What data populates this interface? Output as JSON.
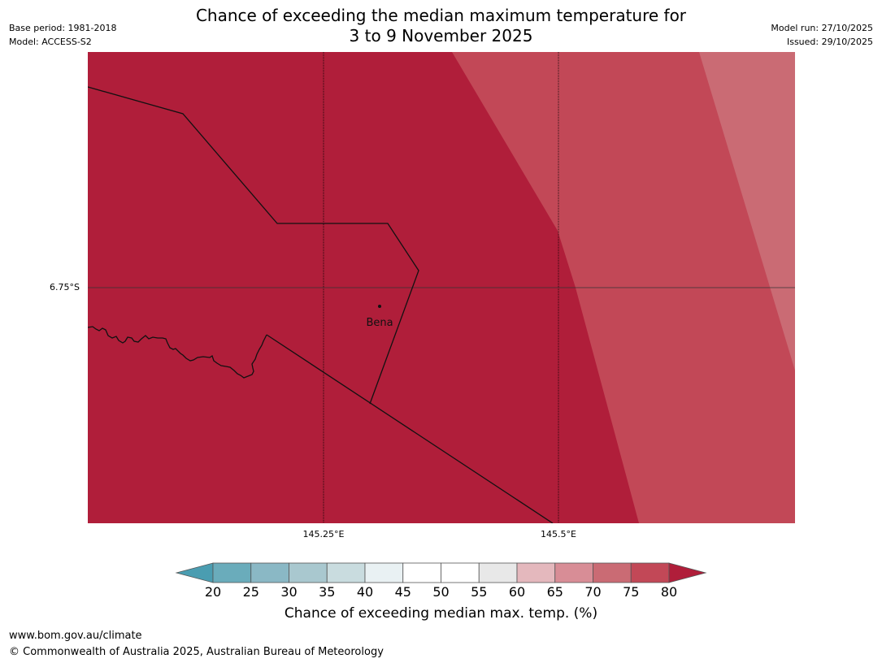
{
  "header": {
    "title_line1": "Chance of exceeding the median maximum temperature for",
    "title_line2": "3 to 9 November 2025",
    "base_period": "Base period: 1981-2018",
    "model": "Model: ACCESS-S2",
    "model_run": "Model run: 27/10/2025",
    "issued": "Issued: 29/10/2025"
  },
  "map": {
    "place_label": "Bena",
    "lat_label": "6.75°S",
    "lon_labels": [
      "145.25°E",
      "145.5°E"
    ],
    "zone_colors": {
      "above_80": "#b01e3a",
      "band_75_80": "#c24857",
      "band_70_75": "#ca6b74"
    }
  },
  "colorbar": {
    "title": "Chance of exceeding median max. temp. (%)",
    "tick_labels": [
      "20",
      "25",
      "30",
      "35",
      "40",
      "45",
      "50",
      "55",
      "60",
      "65",
      "70",
      "75",
      "80"
    ],
    "low_extend_color": "#4a9db1",
    "high_extend_color": "#b01e3a",
    "segment_colors": [
      "#6aacbb",
      "#8ab8c5",
      "#a9c8cf",
      "#c9dcdf",
      "#e9f1f3",
      "#ffffff",
      "#ffffff",
      "#e8e8e8",
      "#e4b8bd",
      "#d88d96",
      "#ca6b74",
      "#c24857"
    ]
  },
  "footer": {
    "url": "www.bom.gov.au/climate",
    "copyright": "© Commonwealth of Australia 2025, Australian Bureau of Meteorology"
  }
}
